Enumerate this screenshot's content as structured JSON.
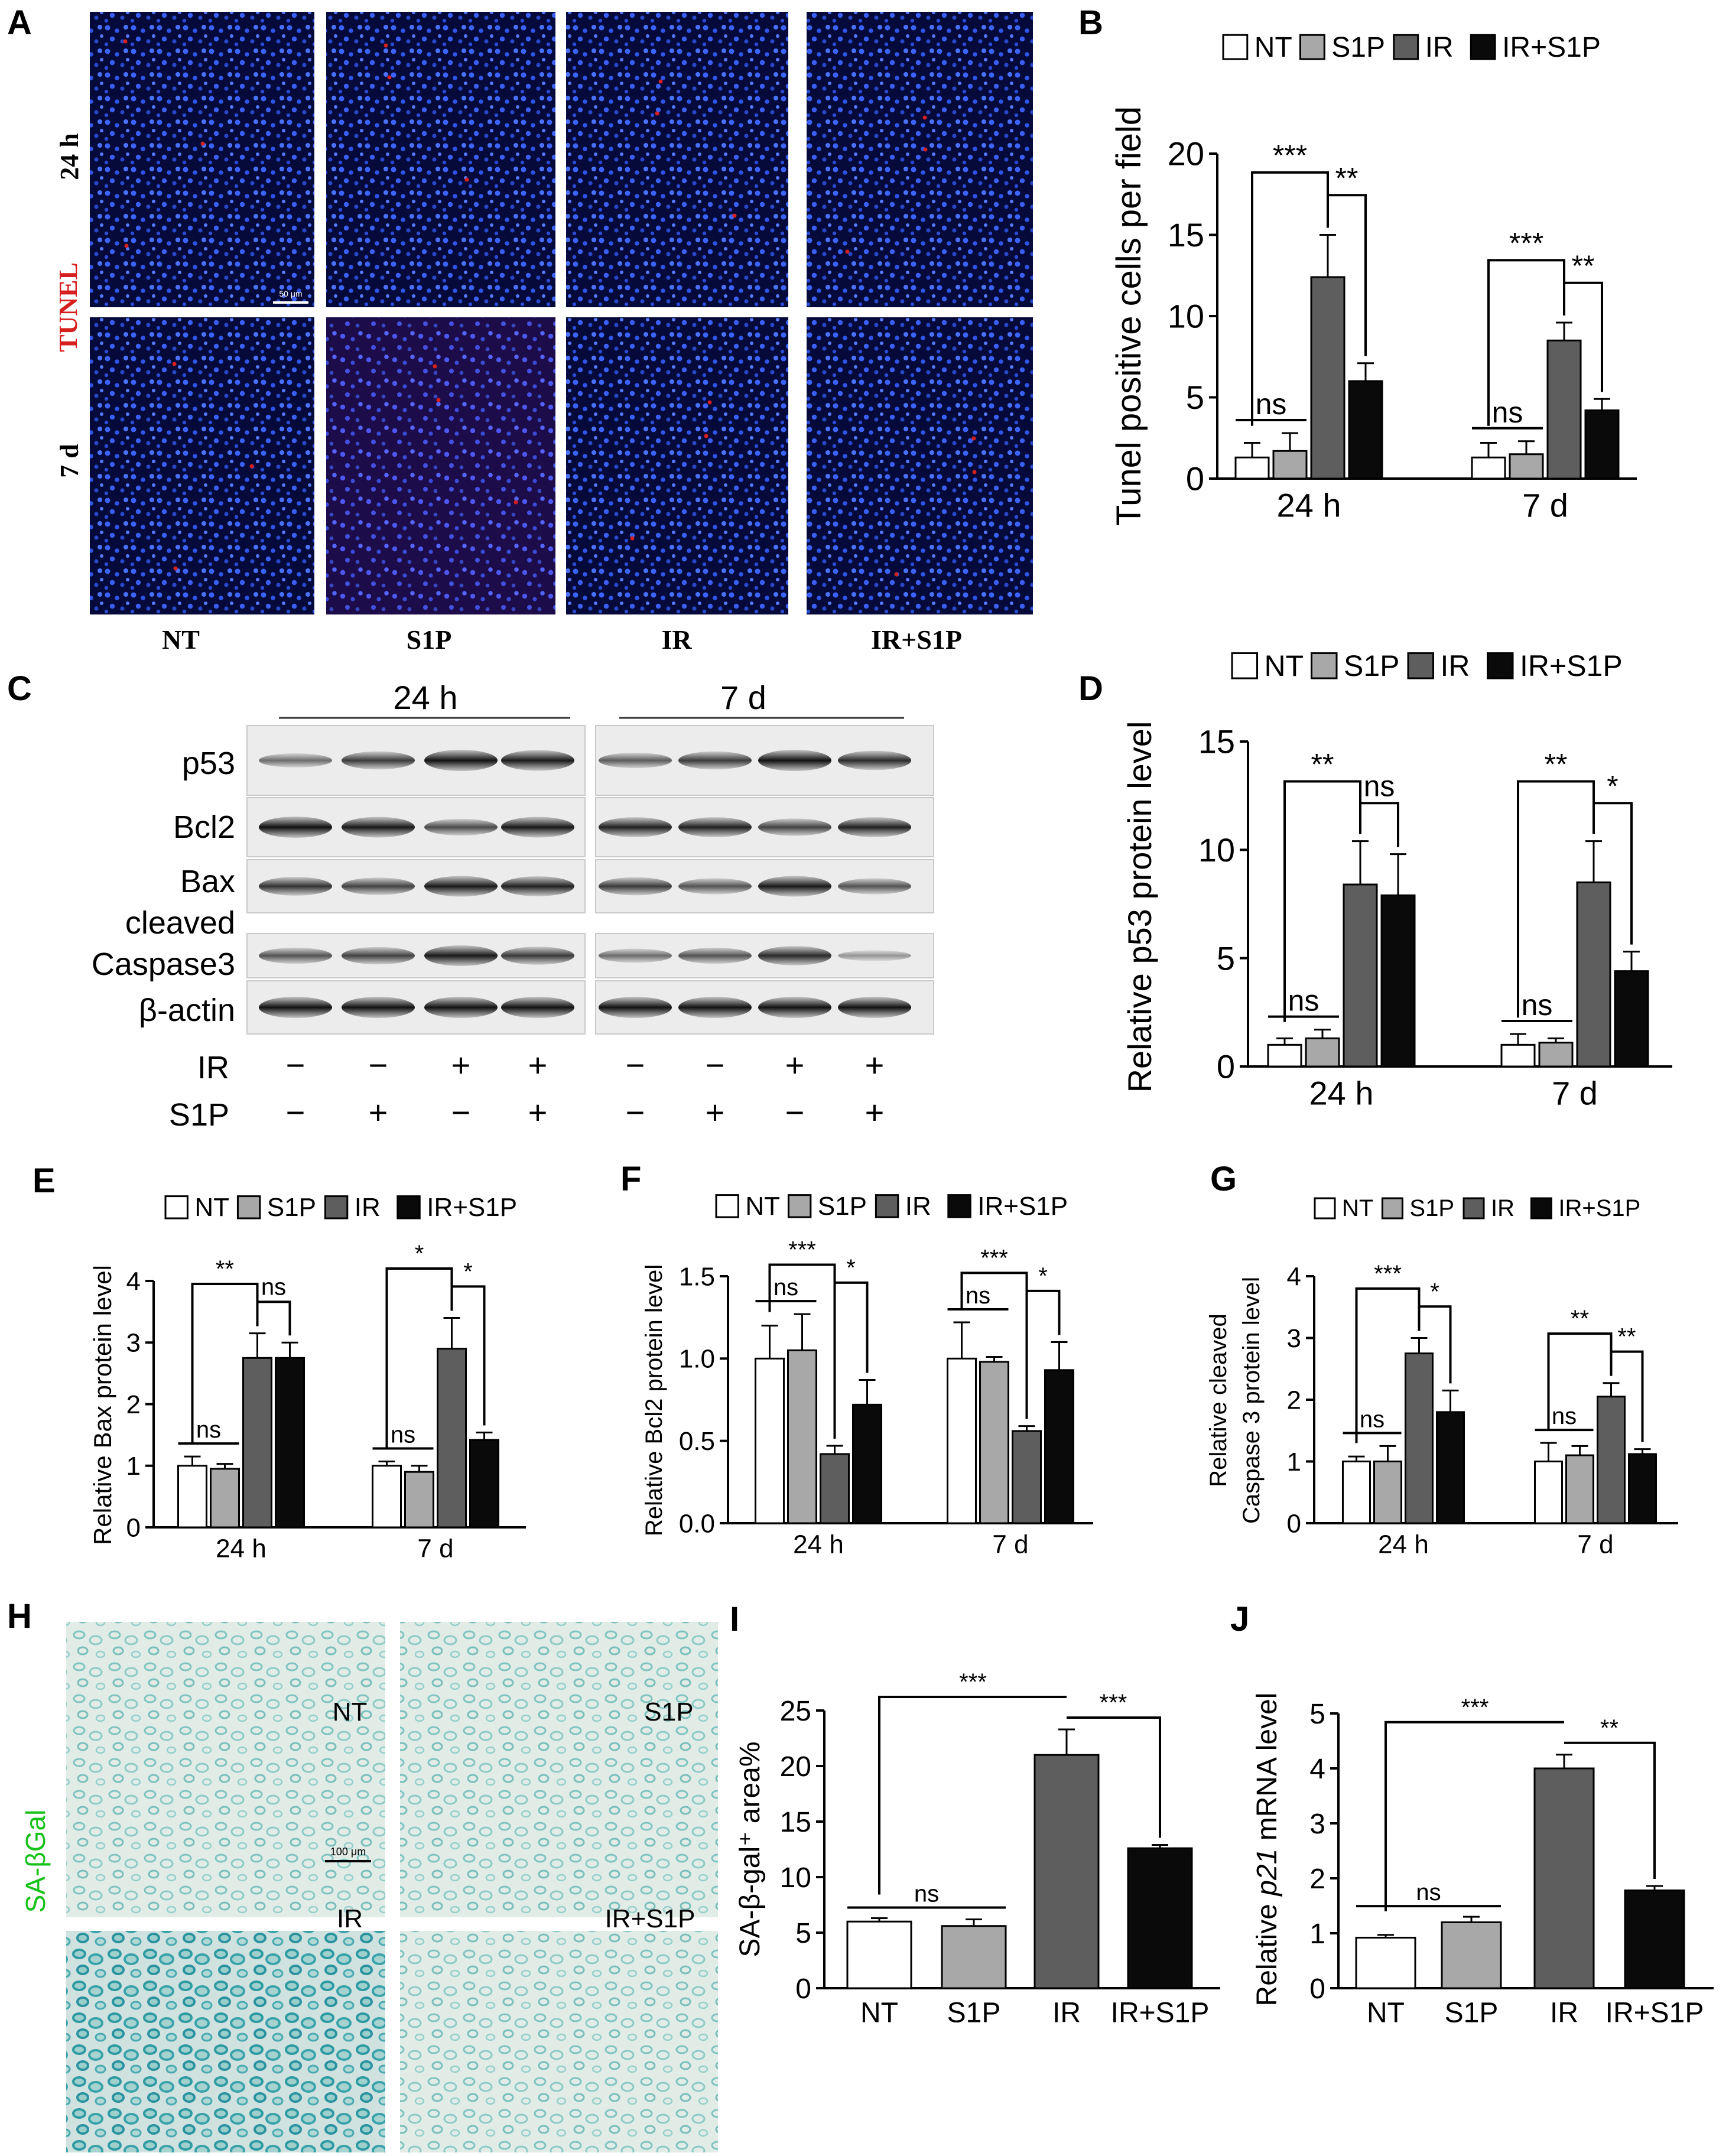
{
  "panels": {
    "A": {
      "letter": "A",
      "rows": [
        "24 h",
        "7 d"
      ],
      "stain": "TUNEL",
      "cols": [
        "NT",
        "S1P",
        "IR",
        "IR+S1P"
      ],
      "scale_bar": "50 μm"
    },
    "C": {
      "letter": "C",
      "times": [
        "24 h",
        "7 d"
      ],
      "rows": [
        "p53",
        "Bcl2",
        "Bax",
        "cleaved",
        "Caspase3",
        "β-actin"
      ],
      "treat_rows": [
        {
          "label": "IR",
          "signs": [
            "−",
            "−",
            "+",
            "+",
            "−",
            "−",
            "+",
            "+"
          ]
        },
        {
          "label": "S1P",
          "signs": [
            "−",
            "+",
            "−",
            "+",
            "−",
            "+",
            "−",
            "+"
          ]
        }
      ]
    },
    "H": {
      "letter": "H",
      "stain": "SA-βGal",
      "tiles": [
        "NT",
        "S1P",
        "IR",
        "IR+S1P"
      ],
      "scale_bar": "100 μm"
    }
  },
  "colors": {
    "NT": "#ffffff",
    "S1P": "#a8a8a8",
    "IR": "#5e5e5e",
    "IR+S1P": "#0a0a0a",
    "tunel": "#d62020",
    "sa": "#17c21a"
  },
  "chart_data": [
    {
      "id": "B",
      "letter": "B",
      "type": "bar",
      "ylabel": "Tunel positive cells per field",
      "legend": [
        "NT",
        "S1P",
        "IR",
        "IR+S1P"
      ],
      "groups": [
        "24 h",
        "7 d"
      ],
      "ylim": [
        0,
        20
      ],
      "ticks": [
        "0",
        "5",
        "10",
        "15",
        "20"
      ],
      "values": [
        [
          1.3,
          1.7,
          12.4,
          6.0
        ],
        [
          1.3,
          1.5,
          8.5,
          4.2
        ]
      ],
      "errors": [
        [
          0.9,
          1.1,
          2.6,
          1.1
        ],
        [
          0.9,
          0.8,
          1.1,
          0.7
        ]
      ],
      "sig": [
        {
          "g": 0,
          "a": 0,
          "b": 1,
          "t": "ns"
        },
        {
          "g": 0,
          "a": 0,
          "b": 2,
          "t": "***"
        },
        {
          "g": 0,
          "a": 2,
          "b": 3,
          "t": "**"
        },
        {
          "g": 1,
          "a": 0,
          "b": 1,
          "t": "ns"
        },
        {
          "g": 1,
          "a": 0,
          "b": 2,
          "t": "***"
        },
        {
          "g": 1,
          "a": 2,
          "b": 3,
          "t": "**"
        }
      ]
    },
    {
      "id": "D",
      "letter": "D",
      "type": "bar",
      "ylabel": "Relative p53 protein level",
      "legend": [
        "NT",
        "S1P",
        "IR",
        "IR+S1P"
      ],
      "groups": [
        "24 h",
        "7 d"
      ],
      "ylim": [
        0,
        15
      ],
      "ticks": [
        "0",
        "5",
        "10",
        "15"
      ],
      "values": [
        [
          1.0,
          1.3,
          8.4,
          7.9
        ],
        [
          1.0,
          1.1,
          8.5,
          4.4
        ]
      ],
      "errors": [
        [
          0.3,
          0.4,
          2.0,
          1.9
        ],
        [
          0.5,
          0.2,
          1.9,
          0.9
        ]
      ],
      "sig": [
        {
          "g": 0,
          "a": 0,
          "b": 1,
          "t": "ns"
        },
        {
          "g": 0,
          "a": 0,
          "b": 2,
          "t": "**"
        },
        {
          "g": 0,
          "a": 2,
          "b": 3,
          "t": "ns"
        },
        {
          "g": 1,
          "a": 0,
          "b": 1,
          "t": "ns"
        },
        {
          "g": 1,
          "a": 0,
          "b": 2,
          "t": "**"
        },
        {
          "g": 1,
          "a": 2,
          "b": 3,
          "t": "*"
        }
      ]
    },
    {
      "id": "E",
      "letter": "E",
      "type": "bar",
      "ylabel": "Relative Bax protein level",
      "legend": [
        "NT",
        "S1P",
        "IR",
        "IR+S1P"
      ],
      "groups": [
        "24 h",
        "7 d"
      ],
      "ylim": [
        0,
        4
      ],
      "ticks": [
        "0",
        "1",
        "2",
        "3",
        "4"
      ],
      "values": [
        [
          1.0,
          0.95,
          2.75,
          2.75
        ],
        [
          1.0,
          0.9,
          2.9,
          1.42
        ]
      ],
      "errors": [
        [
          0.15,
          0.08,
          0.4,
          0.25
        ],
        [
          0.07,
          0.1,
          0.5,
          0.12
        ]
      ],
      "sig": [
        {
          "g": 0,
          "a": 0,
          "b": 1,
          "t": "ns"
        },
        {
          "g": 0,
          "a": 0,
          "b": 2,
          "t": "**"
        },
        {
          "g": 0,
          "a": 2,
          "b": 3,
          "t": "ns"
        },
        {
          "g": 1,
          "a": 0,
          "b": 1,
          "t": "ns"
        },
        {
          "g": 1,
          "a": 0,
          "b": 2,
          "t": "*"
        },
        {
          "g": 1,
          "a": 2,
          "b": 3,
          "t": "*"
        }
      ]
    },
    {
      "id": "F",
      "letter": "F",
      "type": "bar",
      "ylabel": "Relative Bcl2 protein level",
      "legend": [
        "NT",
        "S1P",
        "IR",
        "IR+S1P"
      ],
      "groups": [
        "24 h",
        "7 d"
      ],
      "ylim": [
        0,
        1.5
      ],
      "ticks": [
        "0.0",
        "0.5",
        "1.0",
        "1.5"
      ],
      "values": [
        [
          1.0,
          1.05,
          0.42,
          0.72
        ],
        [
          1.0,
          0.98,
          0.56,
          0.93
        ]
      ],
      "errors": [
        [
          0.2,
          0.22,
          0.05,
          0.15
        ],
        [
          0.22,
          0.03,
          0.03,
          0.17
        ]
      ],
      "sig": [
        {
          "g": 0,
          "a": 0,
          "b": 1,
          "t": "ns"
        },
        {
          "g": 0,
          "a": 0,
          "b": 2,
          "t": "***"
        },
        {
          "g": 0,
          "a": 2,
          "b": 3,
          "t": "*"
        },
        {
          "g": 1,
          "a": 0,
          "b": 1,
          "t": "ns"
        },
        {
          "g": 1,
          "a": 0,
          "b": 2,
          "t": "***"
        },
        {
          "g": 1,
          "a": 2,
          "b": 3,
          "t": "*"
        }
      ]
    },
    {
      "id": "G",
      "letter": "G",
      "type": "bar",
      "ylabel": [
        "Relative cleaved",
        "Caspase 3 protein level"
      ],
      "legend": [
        "NT",
        "S1P",
        "IR",
        "IR+S1P"
      ],
      "groups": [
        "24 h",
        "7 d"
      ],
      "ylim": [
        0,
        4
      ],
      "ticks": [
        "0",
        "1",
        "2",
        "3",
        "4"
      ],
      "values": [
        [
          1.0,
          1.0,
          2.75,
          1.8
        ],
        [
          1.0,
          1.1,
          2.05,
          1.12
        ]
      ],
      "errors": [
        [
          0.08,
          0.25,
          0.25,
          0.35
        ],
        [
          0.3,
          0.15,
          0.22,
          0.08
        ]
      ],
      "sig": [
        {
          "g": 0,
          "a": 0,
          "b": 1,
          "t": "ns"
        },
        {
          "g": 0,
          "a": 0,
          "b": 2,
          "t": "***"
        },
        {
          "g": 0,
          "a": 2,
          "b": 3,
          "t": "*"
        },
        {
          "g": 1,
          "a": 0,
          "b": 1,
          "t": "ns"
        },
        {
          "g": 1,
          "a": 0,
          "b": 2,
          "t": "**"
        },
        {
          "g": 1,
          "a": 2,
          "b": 3,
          "t": "**"
        }
      ]
    },
    {
      "id": "I",
      "letter": "I",
      "type": "bar",
      "ylabel": "SA-β-gal⁺ area%",
      "categories": [
        "NT",
        "S1P",
        "IR",
        "IR+S1P"
      ],
      "ylim": [
        0,
        25
      ],
      "ticks": [
        "0",
        "5",
        "10",
        "15",
        "20",
        "25"
      ],
      "values": [
        6.0,
        5.6,
        21.0,
        12.6
      ],
      "errors": [
        0.3,
        0.6,
        2.3,
        0.3
      ],
      "sig": [
        {
          "a": 0,
          "b": 1,
          "t": "ns"
        },
        {
          "a": 0,
          "b": 2,
          "t": "***"
        },
        {
          "a": 2,
          "b": 3,
          "t": "***"
        }
      ]
    },
    {
      "id": "J",
      "letter": "J",
      "type": "bar",
      "ylabel": "Relative p21 mRNA level",
      "ylabel_italic": "p21",
      "categories": [
        "NT",
        "S1P",
        "IR",
        "IR+S1P"
      ],
      "ylim": [
        0,
        5
      ],
      "ticks": [
        "0",
        "1",
        "2",
        "3",
        "4",
        "5"
      ],
      "values": [
        0.92,
        1.2,
        4.0,
        1.78
      ],
      "errors": [
        0.05,
        0.1,
        0.25,
        0.08
      ],
      "sig": [
        {
          "a": 0,
          "b": 1,
          "t": "ns"
        },
        {
          "a": 0,
          "b": 2,
          "t": "***"
        },
        {
          "a": 2,
          "b": 3,
          "t": "**"
        }
      ]
    }
  ]
}
